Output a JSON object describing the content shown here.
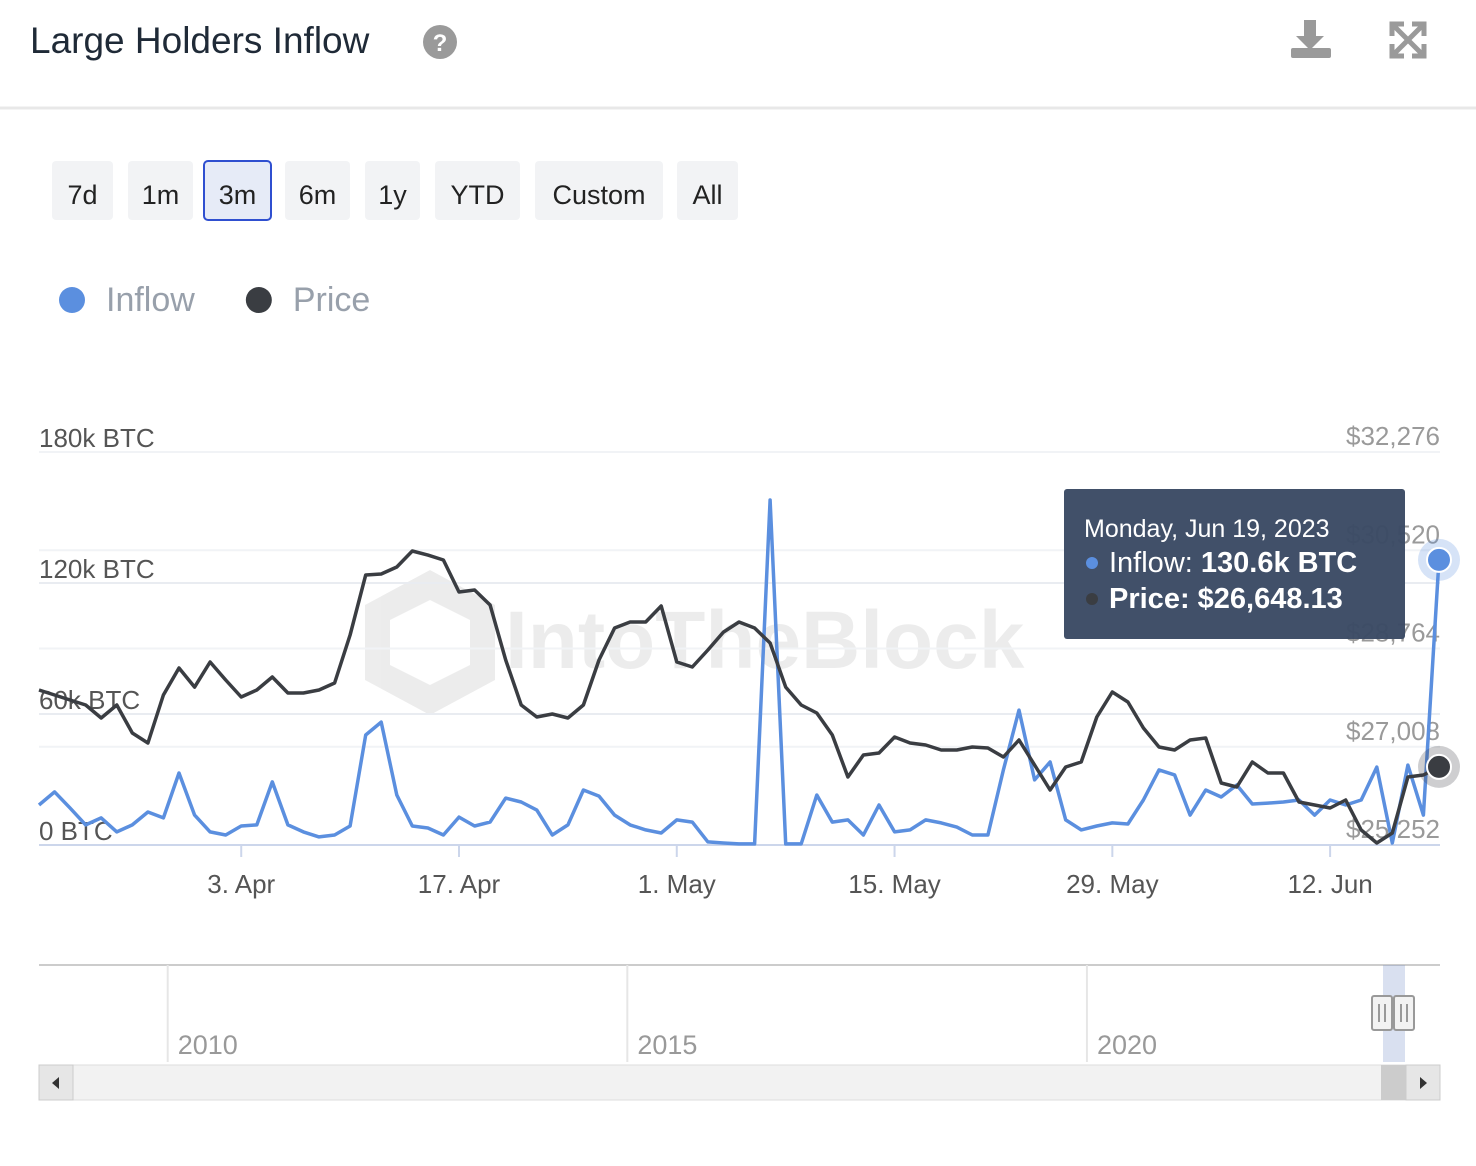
{
  "header": {
    "title": "Large Holders Inflow"
  },
  "range_buttons": [
    "7d",
    "1m",
    "3m",
    "6m",
    "1y",
    "YTD",
    "Custom",
    "All"
  ],
  "selected_range": "3m",
  "chart_data": {
    "type": "line",
    "watermark": "IntoTheBlock",
    "x": [
      "2023-03-21",
      "2023-03-22",
      "2023-03-23",
      "2023-03-24",
      "2023-03-25",
      "2023-03-26",
      "2023-03-27",
      "2023-03-28",
      "2023-03-29",
      "2023-03-30",
      "2023-03-31",
      "2023-04-01",
      "2023-04-02",
      "2023-04-03",
      "2023-04-04",
      "2023-04-05",
      "2023-04-06",
      "2023-04-07",
      "2023-04-08",
      "2023-04-09",
      "2023-04-10",
      "2023-04-11",
      "2023-04-12",
      "2023-04-13",
      "2023-04-14",
      "2023-04-15",
      "2023-04-16",
      "2023-04-17",
      "2023-04-18",
      "2023-04-19",
      "2023-04-20",
      "2023-04-21",
      "2023-04-22",
      "2023-04-23",
      "2023-04-24",
      "2023-04-25",
      "2023-04-26",
      "2023-04-27",
      "2023-04-28",
      "2023-04-29",
      "2023-04-30",
      "2023-05-01",
      "2023-05-02",
      "2023-05-03",
      "2023-05-04",
      "2023-05-05",
      "2023-05-06",
      "2023-05-07",
      "2023-05-08",
      "2023-05-09",
      "2023-05-10",
      "2023-05-11",
      "2023-05-12",
      "2023-05-13",
      "2023-05-14",
      "2023-05-15",
      "2023-05-16",
      "2023-05-17",
      "2023-05-18",
      "2023-05-19",
      "2023-05-20",
      "2023-05-21",
      "2023-05-22",
      "2023-05-23",
      "2023-05-24",
      "2023-05-25",
      "2023-05-26",
      "2023-05-27",
      "2023-05-28",
      "2023-05-29",
      "2023-05-30",
      "2023-05-31",
      "2023-06-01",
      "2023-06-02",
      "2023-06-03",
      "2023-06-04",
      "2023-06-05",
      "2023-06-06",
      "2023-06-07",
      "2023-06-08",
      "2023-06-09",
      "2023-06-10",
      "2023-06-11",
      "2023-06-12",
      "2023-06-13",
      "2023-06-14",
      "2023-06-15",
      "2023-06-16",
      "2023-06-17",
      "2023-06-18",
      "2023-06-19"
    ],
    "series": [
      {
        "name": "Inflow",
        "color": "#5b8fdf",
        "values": [
          18300,
          24300,
          16900,
          9200,
          12400,
          6000,
          9200,
          15100,
          12400,
          33000,
          13700,
          6000,
          4600,
          8700,
          9200,
          28900,
          9200,
          6000,
          3700,
          4600,
          8700,
          50400,
          56300,
          22900,
          8700,
          7800,
          4600,
          12800,
          8700,
          10500,
          21500,
          19700,
          16000,
          4600,
          9200,
          25200,
          22400,
          13700,
          9200,
          6900,
          5500,
          11500,
          10500,
          1400,
          900,
          500,
          500,
          158000,
          500,
          500,
          22900,
          10500,
          11500,
          4600,
          18300,
          6000,
          6900,
          11500,
          10100,
          8200,
          4600,
          4600,
          34400,
          61800,
          29800,
          38000,
          11500,
          6900,
          8700,
          10100,
          9600,
          20600,
          34400,
          32100,
          13700,
          25200,
          22000,
          27500,
          18800,
          19200,
          19700,
          20600,
          13700,
          20600,
          18300,
          20600,
          35700,
          900,
          36600,
          13700,
          130600
        ]
      },
      {
        "name": "Price",
        "color": "#3a3d42",
        "axis": "y2",
        "values": [
          28022,
          27933,
          27843,
          27754,
          27521,
          27754,
          27253,
          27075,
          27933,
          28415,
          28075,
          28522,
          28201,
          27897,
          28022,
          28254,
          27968,
          27968,
          28022,
          28147,
          29005,
          30077,
          30095,
          30220,
          30506,
          30434,
          30345,
          29773,
          29809,
          29541,
          28558,
          27754,
          27539,
          27593,
          27521,
          27754,
          28558,
          29130,
          29237,
          29237,
          29523,
          28522,
          28433,
          28737,
          29058,
          29237,
          29130,
          28862,
          28075,
          27754,
          27611,
          27218,
          26467,
          26860,
          26896,
          27182,
          27075,
          27039,
          26950,
          26950,
          27003,
          26985,
          26825,
          27128,
          26682,
          26235,
          26646,
          26735,
          27539,
          27986,
          27807,
          27343,
          27003,
          26950,
          27128,
          27164,
          26360,
          26288,
          26735,
          26539,
          26539,
          26020,
          25967,
          25913,
          26056,
          25520,
          25288,
          25466,
          26467,
          26503,
          26648.13
        ]
      }
    ],
    "xlim": [
      "2023-03-21",
      "2023-06-19"
    ],
    "xticks": [
      {
        "value": "2023-04-03",
        "label": "3. Apr"
      },
      {
        "value": "2023-04-17",
        "label": "17. Apr"
      },
      {
        "value": "2023-05-01",
        "label": "1. May"
      },
      {
        "value": "2023-05-15",
        "label": "15. May"
      },
      {
        "value": "2023-05-29",
        "label": "29. May"
      },
      {
        "value": "2023-06-12",
        "label": "12. Jun"
      }
    ],
    "ylim": [
      0,
      180000
    ],
    "yticks": [
      {
        "value": 0,
        "label": "0 BTC"
      },
      {
        "value": 60000,
        "label": "60k BTC"
      },
      {
        "value": 120000,
        "label": "120k BTC"
      },
      {
        "value": 180000,
        "label": "180k BTC"
      }
    ],
    "y2lim": [
      25252,
      32276
    ],
    "y2ticks": [
      {
        "value": 25252,
        "label": "$25,252"
      },
      {
        "value": 27008,
        "label": "$27,008"
      },
      {
        "value": 28764,
        "label": "$28,764"
      },
      {
        "value": 30520,
        "label": "$30,520"
      },
      {
        "value": 32276,
        "label": "$32,276"
      }
    ],
    "grid": true,
    "legend": "top-left",
    "tooltip": {
      "date": "Monday, Jun 19, 2023",
      "items": [
        {
          "label": "Inflow:",
          "value": "130.6k BTC"
        },
        {
          "label": "Price:",
          "value": "$26,648.13"
        }
      ]
    },
    "navigator": {
      "xlim": [
        2008.6,
        2023.46
      ],
      "xticks": [
        2010,
        2015,
        2020
      ]
    }
  }
}
